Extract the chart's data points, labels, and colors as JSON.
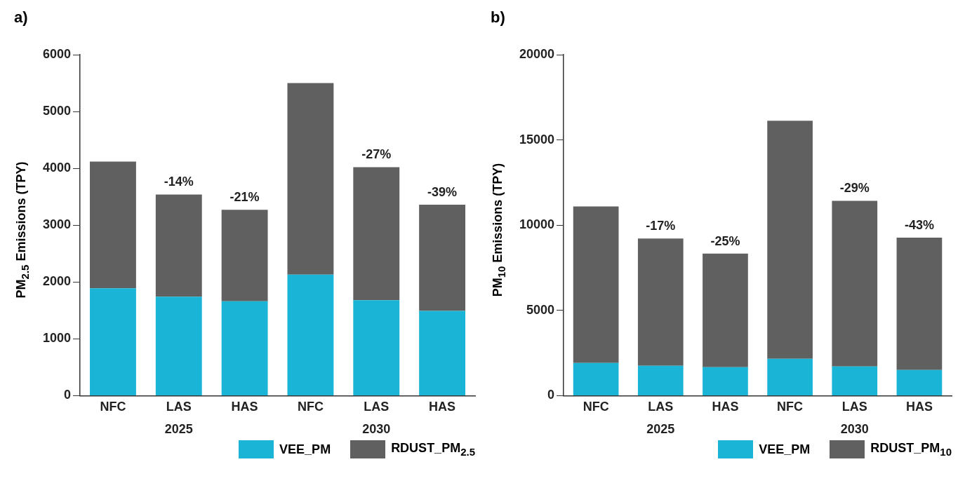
{
  "chart_data": [
    {
      "type": "bar",
      "title": "a)",
      "ylabel": "PM$_{2.5}$ Emissions (TPY)",
      "categories": [
        "NFC",
        "LAS",
        "HAS",
        "NFC",
        "LAS",
        "HAS"
      ],
      "stacked": true,
      "ylim": [
        0,
        6000
      ],
      "yticks": [
        0,
        1000,
        2000,
        3000,
        4000,
        5000,
        6000
      ],
      "grid": false,
      "legend": "bottom right",
      "annotations": [
        "2025",
        "2030",
        {
          "text": "-14%",
          "y": 3540
        },
        {
          "text": "-21%",
          "y": 3270
        },
        {
          "text": "-27%",
          "y": 4020
        },
        {
          "text": "-39%",
          "y": 3360
        }
      ],
      "series": [
        {
          "name": "VEE_PM",
          "color": "#1ab4d6",
          "values": [
            1890,
            1740,
            1660,
            2130,
            1680,
            1490
          ]
        },
        {
          "name": "RDUST_PM$_{2.5}$",
          "color": "#606060",
          "values": [
            2230,
            1800,
            1610,
            3370,
            2340,
            1870
          ]
        }
      ]
    },
    {
      "type": "bar",
      "title": "b)",
      "ylabel": "PM$_{10}$ Emissions (TPY)",
      "categories": [
        "NFC",
        "LAS",
        "HAS",
        "NFC",
        "LAS",
        "HAS"
      ],
      "stacked": true,
      "ylim": [
        0,
        20000
      ],
      "yticks": [
        0,
        5000,
        10000,
        15000,
        20000
      ],
      "grid": false,
      "legend": "bottom right",
      "annotations": [
        "2025",
        "2030",
        {
          "text": "-17%",
          "y": 9220
        },
        {
          "text": "-25%",
          "y": 8330
        },
        {
          "text": "-29%",
          "y": 11430
        },
        {
          "text": "-43%",
          "y": 9270
        }
      ],
      "series": [
        {
          "name": "VEE_PM",
          "color": "#1ab4d6",
          "values": [
            1920,
            1750,
            1670,
            2160,
            1710,
            1510
          ]
        },
        {
          "name": "RDUST_PM$_{10}$",
          "color": "#606060",
          "values": [
            9180,
            7470,
            6660,
            13960,
            9720,
            7760
          ]
        }
      ]
    }
  ]
}
